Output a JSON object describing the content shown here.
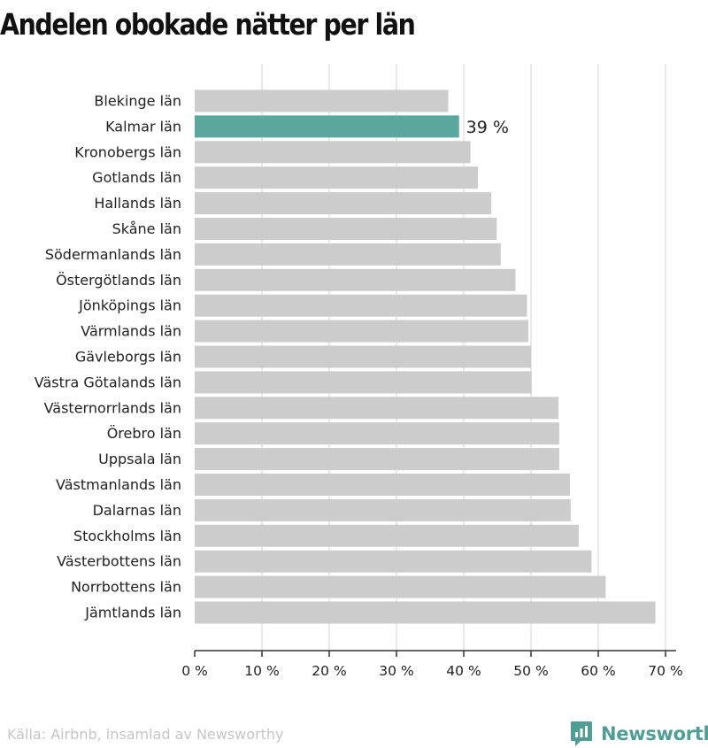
{
  "chart_data": {
    "type": "bar",
    "orientation": "horizontal",
    "title": "Andelen obokade nätter per län",
    "categories": [
      "Blekinge län",
      "Kalmar län",
      "Kronobergs län",
      "Gotlands län",
      "Hallands län",
      "Skåne län",
      "Södermanlands län",
      "Östergötlands län",
      "Jönköpings län",
      "Värmlands län",
      "Gävleborgs län",
      "Västra Götalands län",
      "Västernorrlands län",
      "Örebro län",
      "Uppsala län",
      "Västmanlands län",
      "Dalarnas län",
      "Stockholms län",
      "Västerbottens län",
      "Norrbottens län",
      "Jämtlands län"
    ],
    "values": [
      37.7,
      39.3,
      41.0,
      42.1,
      44.1,
      44.9,
      45.5,
      47.7,
      49.4,
      49.6,
      50.0,
      50.1,
      54.1,
      54.2,
      54.2,
      55.8,
      55.9,
      57.1,
      59.0,
      61.1,
      68.5
    ],
    "highlight": "Kalmar län",
    "highlight_label": "39 %",
    "xlim": [
      0,
      70
    ],
    "xticks": [
      0,
      10,
      20,
      30,
      40,
      50,
      60,
      70
    ],
    "xtick_labels": [
      "0 %",
      "10 %",
      "20 %",
      "30 %",
      "40 %",
      "50 %",
      "60 %",
      "70 %"
    ],
    "grid": true,
    "colors": {
      "bar": "#cccccc",
      "highlight": "#5aa79e",
      "grid": "#e2e2e2",
      "axis": "#333333"
    }
  },
  "footer": {
    "source": "Källa: Airbnb, insamlad av Newsworthy",
    "brand": "Newsworthy",
    "brand_icon": "newsworthy-logo-icon",
    "brand_color": "#4f9e96"
  }
}
